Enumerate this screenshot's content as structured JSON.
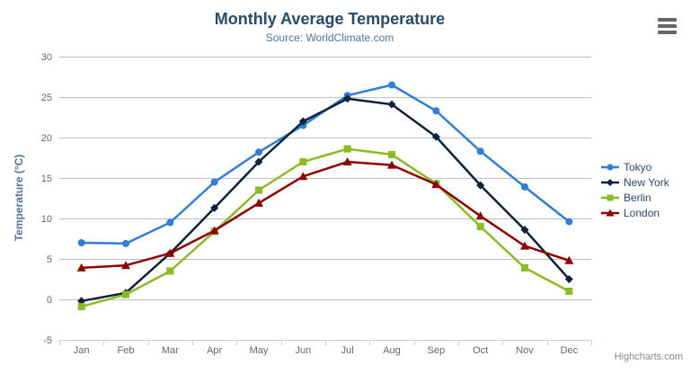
{
  "header": {
    "title": "Monthly Average Temperature",
    "subtitle": "Source: WorldClimate.com"
  },
  "credits": "Highcharts.com",
  "colors": {
    "title": "#274b6d",
    "subtitle": "#4d759e",
    "axis_label": "#666666",
    "axis_title": "#4d759e",
    "grid": "#c0c0c0",
    "axis_line": "#c0d0e0",
    "legend_text": "#274b6d",
    "credits": "#8a8a8a",
    "menu_icon": "#666666",
    "background": "#ffffff"
  },
  "chart_data": {
    "type": "line",
    "title": "Monthly Average Temperature",
    "subtitle": "Source: WorldClimate.com",
    "xlabel": "",
    "ylabel": "Temperature (°C)",
    "ylim": [
      -5,
      30
    ],
    "ytick_interval": 5,
    "grid": true,
    "legend_position": "right",
    "categories": [
      "Jan",
      "Feb",
      "Mar",
      "Apr",
      "May",
      "Jun",
      "Jul",
      "Aug",
      "Sep",
      "Oct",
      "Nov",
      "Dec"
    ],
    "series": [
      {
        "name": "Tokyo",
        "color": "#2f7ed8",
        "marker": "circle",
        "values": [
          7.0,
          6.9,
          9.5,
          14.5,
          18.2,
          21.5,
          25.2,
          26.5,
          23.3,
          18.3,
          13.9,
          9.6
        ]
      },
      {
        "name": "New York",
        "color": "#0d233a",
        "marker": "diamond",
        "values": [
          -0.2,
          0.8,
          5.7,
          11.3,
          17.0,
          22.0,
          24.8,
          24.1,
          20.1,
          14.1,
          8.6,
          2.5
        ]
      },
      {
        "name": "Berlin",
        "color": "#8bbc21",
        "marker": "square",
        "values": [
          -0.9,
          0.6,
          3.5,
          8.4,
          13.5,
          17.0,
          18.6,
          17.9,
          14.3,
          9.0,
          3.9,
          1.0
        ]
      },
      {
        "name": "London",
        "color": "#910000",
        "marker": "triangle",
        "values": [
          3.9,
          4.2,
          5.7,
          8.5,
          11.9,
          15.2,
          17.0,
          16.6,
          14.2,
          10.3,
          6.6,
          4.8
        ]
      }
    ]
  }
}
